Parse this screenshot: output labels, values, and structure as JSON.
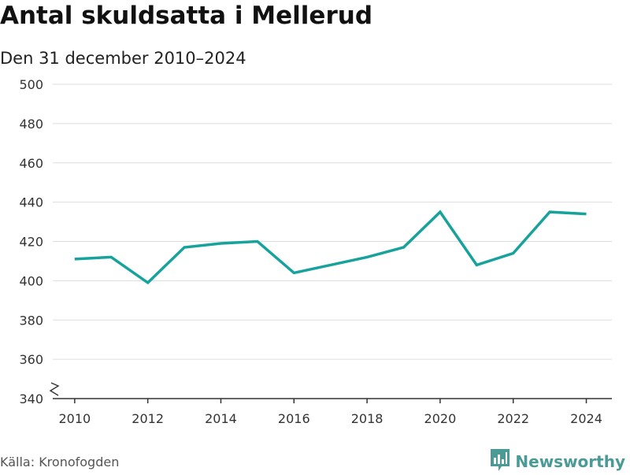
{
  "header": {
    "title": "Antal skuldsatta i Mellerud",
    "subtitle": "Den 31 december 2010–2024"
  },
  "footer": {
    "source": "Källa: Kronofogden",
    "brand": "Newsworthy",
    "brand_icon": "newsworthy-logo-icon"
  },
  "colors": {
    "line": "#17a39b",
    "grid": "#dddddd",
    "axis": "#333333",
    "brand": "#4a9a96"
  },
  "chart_data": {
    "type": "line",
    "title": "Antal skuldsatta i Mellerud",
    "subtitle": "Den 31 december 2010–2024",
    "xlabel": "",
    "ylabel": "",
    "x": [
      2010,
      2011,
      2012,
      2013,
      2014,
      2015,
      2016,
      2017,
      2018,
      2019,
      2020,
      2021,
      2022,
      2023,
      2024
    ],
    "series": [
      {
        "name": "Antal skuldsatta",
        "values": [
          411,
          412,
          399,
          417,
          419,
          420,
          404,
          408,
          412,
          417,
          435,
          408,
          414,
          435,
          434
        ]
      }
    ],
    "xticks": [
      2010,
      2012,
      2014,
      2016,
      2018,
      2020,
      2022,
      2024
    ],
    "xtick_labels": [
      "2010",
      "2012",
      "2014",
      "2016",
      "2018",
      "2020",
      "2022",
      "2024"
    ],
    "yticks": [
      340,
      360,
      380,
      400,
      420,
      440,
      460,
      480,
      500
    ],
    "ytick_labels": [
      "340",
      "360",
      "380",
      "400",
      "420",
      "440",
      "460",
      "480",
      "500"
    ],
    "ylim": [
      340,
      500
    ],
    "xlim": [
      2009.4,
      2024.7
    ],
    "grid": true,
    "axis_break": true,
    "legend": "none"
  }
}
